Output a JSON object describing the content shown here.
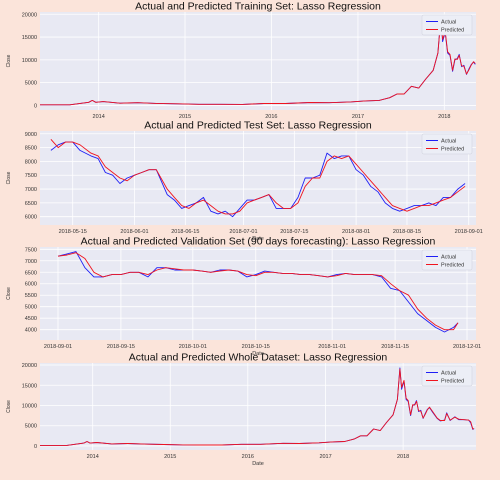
{
  "figure": {
    "background": "#fbe4da",
    "axes_background": "#e8e9f3",
    "grid_color": "#ffffff",
    "actual_color": "#1f1ff5",
    "predicted_color": "#f0141e"
  },
  "chart_data": [
    {
      "type": "line",
      "title": "Actual and Predicted Training Set: Lasso Regression",
      "xlabel": "",
      "ylabel": "Close",
      "xlim": [
        "2013-04-28",
        "2018-05-15"
      ],
      "ylim": [
        -1000,
        20500
      ],
      "xticks": [
        "2014",
        "2015",
        "2016",
        "2017",
        "2018"
      ],
      "yticks": [
        0,
        5000,
        10000,
        15000,
        20000
      ],
      "legend": "top-right",
      "x": [
        "2013-04-28",
        "2013-09-01",
        "2013-11-20",
        "2013-12-05",
        "2013-12-20",
        "2014-01-20",
        "2014-04-01",
        "2014-06-15",
        "2014-09-01",
        "2014-12-01",
        "2015-03-01",
        "2015-06-01",
        "2015-09-01",
        "2015-12-01",
        "2016-03-01",
        "2016-06-15",
        "2016-09-01",
        "2016-12-01",
        "2017-02-01",
        "2017-04-01",
        "2017-05-15",
        "2017-06-15",
        "2017-07-15",
        "2017-08-15",
        "2017-09-15",
        "2017-10-15",
        "2017-11-15",
        "2017-12-05",
        "2017-12-17",
        "2017-12-25",
        "2018-01-05",
        "2018-01-15",
        "2018-01-25",
        "2018-02-05",
        "2018-02-15",
        "2018-02-25",
        "2018-03-05",
        "2018-03-15",
        "2018-03-25",
        "2018-04-05",
        "2018-04-15",
        "2018-04-25",
        "2018-05-05",
        "2018-05-12"
      ],
      "series": [
        {
          "name": "Actual",
          "values": [
            135,
            130,
            700,
            1100,
            700,
            850,
            500,
            600,
            450,
            350,
            250,
            240,
            230,
            420,
            420,
            650,
            600,
            780,
            1000,
            1100,
            1700,
            2500,
            2500,
            4200,
            3800,
            5800,
            7700,
            11500,
            19300,
            14000,
            16000,
            11500,
            11000,
            7500,
            10000,
            10300,
            11200,
            8500,
            8800,
            6800,
            8000,
            9000,
            9500,
            9000
          ]
        },
        {
          "name": "Predicted",
          "values": [
            135,
            130,
            700,
            1100,
            700,
            850,
            500,
            600,
            450,
            350,
            250,
            240,
            230,
            420,
            420,
            650,
            600,
            780,
            1000,
            1100,
            1700,
            2500,
            2500,
            4200,
            3800,
            5800,
            7700,
            11500,
            19000,
            14500,
            16200,
            11800,
            11200,
            7700,
            10200,
            10100,
            11000,
            8700,
            8600,
            6900,
            7800,
            8900,
            9600,
            9200
          ]
        }
      ]
    },
    {
      "type": "line",
      "title": "Actual and Predicted Test Set: Lasso Regression",
      "xlabel": "Date",
      "ylabel": "Close",
      "xlim": [
        "2018-05-06",
        "2018-09-03"
      ],
      "ylim": [
        5700,
        9100
      ],
      "xticks": [
        "2018-05-15",
        "2018-06-01",
        "2018-06-15",
        "2018-07-01",
        "2018-07-15",
        "2018-08-01",
        "2018-08-15",
        "2018-09-01"
      ],
      "yticks": [
        6000,
        6500,
        7000,
        7500,
        8000,
        8500,
        9000
      ],
      "legend": "top-right",
      "x": [
        "2018-05-09",
        "2018-05-11",
        "2018-05-13",
        "2018-05-15",
        "2018-05-17",
        "2018-05-20",
        "2018-05-22",
        "2018-05-24",
        "2018-05-26",
        "2018-05-28",
        "2018-05-30",
        "2018-06-01",
        "2018-06-03",
        "2018-06-05",
        "2018-06-07",
        "2018-06-10",
        "2018-06-12",
        "2018-06-14",
        "2018-06-16",
        "2018-06-18",
        "2018-06-20",
        "2018-06-22",
        "2018-06-24",
        "2018-06-26",
        "2018-06-28",
        "2018-06-30",
        "2018-07-02",
        "2018-07-04",
        "2018-07-06",
        "2018-07-08",
        "2018-07-10",
        "2018-07-12",
        "2018-07-14",
        "2018-07-16",
        "2018-07-18",
        "2018-07-20",
        "2018-07-22",
        "2018-07-24",
        "2018-07-26",
        "2018-07-28",
        "2018-07-30",
        "2018-08-01",
        "2018-08-03",
        "2018-08-05",
        "2018-08-07",
        "2018-08-09",
        "2018-08-11",
        "2018-08-13",
        "2018-08-15",
        "2018-08-17",
        "2018-08-19",
        "2018-08-21",
        "2018-08-23",
        "2018-08-25",
        "2018-08-27",
        "2018-08-29",
        "2018-08-31"
      ],
      "series": [
        {
          "name": "Actual",
          "values": [
            8400,
            8600,
            8700,
            8700,
            8400,
            8200,
            8100,
            7600,
            7500,
            7200,
            7400,
            7500,
            7600,
            7700,
            7700,
            6800,
            6600,
            6300,
            6400,
            6500,
            6700,
            6200,
            6100,
            6200,
            6000,
            6300,
            6600,
            6600,
            6700,
            6800,
            6300,
            6300,
            6300,
            6700,
            7400,
            7400,
            7500,
            8300,
            8100,
            8200,
            8200,
            7700,
            7500,
            7100,
            6900,
            6500,
            6300,
            6200,
            6300,
            6400,
            6400,
            6500,
            6400,
            6700,
            6700,
            7000,
            7200
          ]
        },
        {
          "name": "Predicted",
          "values": [
            8800,
            8500,
            8700,
            8700,
            8600,
            8300,
            8200,
            7800,
            7600,
            7400,
            7300,
            7500,
            7600,
            7700,
            7700,
            7000,
            6700,
            6400,
            6300,
            6500,
            6600,
            6400,
            6200,
            6100,
            6100,
            6200,
            6500,
            6600,
            6700,
            6800,
            6500,
            6300,
            6300,
            6500,
            7100,
            7400,
            7400,
            8000,
            8200,
            8100,
            8200,
            7900,
            7600,
            7300,
            7000,
            6700,
            6400,
            6300,
            6200,
            6300,
            6400,
            6400,
            6500,
            6600,
            6700,
            6900,
            7100
          ]
        }
      ]
    },
    {
      "type": "line",
      "title": "Actual and Predicted Validation Set (90 days forecasting): Lasso Regression",
      "xlabel": "Date",
      "ylabel": "Close",
      "xlim": [
        "2018-08-28",
        "2018-12-03"
      ],
      "ylim": [
        3550,
        7600
      ],
      "xticks": [
        "2018-09-01",
        "2018-09-15",
        "2018-10-01",
        "2018-10-15",
        "2018-11-01",
        "2018-11-15",
        "2018-12-01"
      ],
      "yticks": [
        4000,
        4500,
        5000,
        5500,
        6000,
        6500,
        7000,
        7500
      ],
      "legend": "top-right",
      "x": [
        "2018-09-01",
        "2018-09-03",
        "2018-09-05",
        "2018-09-07",
        "2018-09-09",
        "2018-09-11",
        "2018-09-13",
        "2018-09-15",
        "2018-09-17",
        "2018-09-19",
        "2018-09-21",
        "2018-09-23",
        "2018-09-25",
        "2018-09-27",
        "2018-09-29",
        "2018-10-01",
        "2018-10-03",
        "2018-10-05",
        "2018-10-07",
        "2018-10-09",
        "2018-10-11",
        "2018-10-13",
        "2018-10-15",
        "2018-10-17",
        "2018-10-19",
        "2018-10-21",
        "2018-10-23",
        "2018-10-25",
        "2018-10-27",
        "2018-10-29",
        "2018-10-31",
        "2018-11-02",
        "2018-11-04",
        "2018-11-06",
        "2018-11-08",
        "2018-11-10",
        "2018-11-12",
        "2018-11-14",
        "2018-11-16",
        "2018-11-18",
        "2018-11-20",
        "2018-11-22",
        "2018-11-24",
        "2018-11-26",
        "2018-11-28",
        "2018-11-29"
      ],
      "series": [
        {
          "name": "Actual",
          "values": [
            7200,
            7300,
            7400,
            6700,
            6300,
            6300,
            6400,
            6400,
            6500,
            6500,
            6300,
            6700,
            6700,
            6600,
            6600,
            6600,
            6550,
            6500,
            6600,
            6600,
            6550,
            6300,
            6400,
            6550,
            6500,
            6450,
            6450,
            6400,
            6400,
            6350,
            6300,
            6400,
            6450,
            6400,
            6400,
            6400,
            6300,
            5800,
            5700,
            5200,
            4700,
            4400,
            4100,
            3900,
            4100,
            4300
          ]
        },
        {
          "name": "Predicted",
          "values": [
            7200,
            7250,
            7350,
            7100,
            6500,
            6300,
            6400,
            6400,
            6500,
            6500,
            6400,
            6600,
            6700,
            6650,
            6600,
            6600,
            6550,
            6500,
            6550,
            6600,
            6550,
            6400,
            6350,
            6500,
            6500,
            6450,
            6450,
            6400,
            6400,
            6350,
            6300,
            6350,
            6450,
            6400,
            6400,
            6400,
            6350,
            6000,
            5700,
            5500,
            4900,
            4500,
            4200,
            4000,
            4000,
            4300
          ]
        }
      ]
    },
    {
      "type": "line",
      "title": "Actual and Predicted Whole Dataset: Lasso Regression",
      "xlabel": "Date",
      "ylabel": "Close",
      "xlim": [
        "2013-04-28",
        "2018-12-10"
      ],
      "ylim": [
        -1000,
        20500
      ],
      "xticks": [
        "2014",
        "2015",
        "2016",
        "2017",
        "2018"
      ],
      "yticks": [
        0,
        5000,
        10000,
        15000,
        20000
      ],
      "legend": "top-right",
      "x": [
        "2013-04-28",
        "2013-09-01",
        "2013-11-20",
        "2013-12-05",
        "2013-12-20",
        "2014-01-20",
        "2014-04-01",
        "2014-06-15",
        "2014-09-01",
        "2014-12-01",
        "2015-03-01",
        "2015-06-01",
        "2015-09-01",
        "2015-12-01",
        "2016-03-01",
        "2016-06-15",
        "2016-09-01",
        "2016-12-01",
        "2017-02-01",
        "2017-04-01",
        "2017-05-15",
        "2017-06-15",
        "2017-07-15",
        "2017-08-15",
        "2017-09-15",
        "2017-10-15",
        "2017-11-15",
        "2017-12-05",
        "2017-12-17",
        "2017-12-25",
        "2018-01-05",
        "2018-01-15",
        "2018-01-25",
        "2018-02-05",
        "2018-02-15",
        "2018-02-25",
        "2018-03-05",
        "2018-03-15",
        "2018-03-25",
        "2018-04-05",
        "2018-04-15",
        "2018-04-25",
        "2018-05-05",
        "2018-05-20",
        "2018-06-10",
        "2018-06-25",
        "2018-07-15",
        "2018-07-25",
        "2018-08-10",
        "2018-09-01",
        "2018-09-20",
        "2018-10-15",
        "2018-11-05",
        "2018-11-15",
        "2018-11-25",
        "2018-12-01"
      ],
      "series": [
        {
          "name": "Actual",
          "values": [
            135,
            130,
            700,
            1100,
            700,
            850,
            500,
            600,
            450,
            350,
            250,
            240,
            230,
            420,
            420,
            650,
            600,
            780,
            1000,
            1100,
            1700,
            2500,
            2500,
            4200,
            3800,
            5800,
            7700,
            11500,
            19300,
            14000,
            16000,
            11500,
            11000,
            7500,
            10000,
            10300,
            11200,
            8500,
            8800,
            6800,
            8000,
            9000,
            9500,
            8300,
            6800,
            6200,
            6400,
            8200,
            6300,
            7200,
            6500,
            6500,
            6400,
            5700,
            4100,
            4300
          ]
        },
        {
          "name": "Predicted",
          "values": [
            135,
            130,
            700,
            1100,
            700,
            850,
            500,
            600,
            450,
            350,
            250,
            240,
            230,
            420,
            420,
            650,
            600,
            780,
            1000,
            1100,
            1700,
            2500,
            2500,
            4200,
            3800,
            5800,
            7700,
            11500,
            19000,
            14500,
            16200,
            11800,
            11200,
            7700,
            10200,
            10100,
            11000,
            8700,
            8600,
            6900,
            7800,
            8900,
            9600,
            8500,
            6900,
            6300,
            6300,
            8000,
            6400,
            7100,
            6600,
            6500,
            6400,
            6000,
            4200,
            4300
          ]
        }
      ]
    }
  ]
}
